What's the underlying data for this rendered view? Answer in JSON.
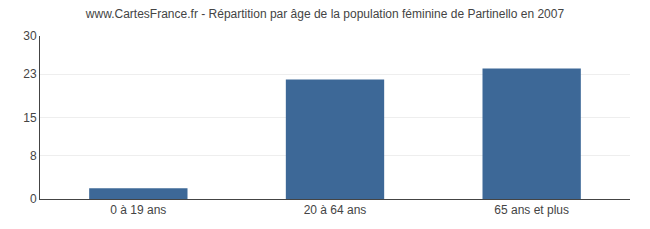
{
  "chart_data": {
    "type": "bar",
    "title": "www.CartesFrance.fr - Répartition par âge de la population féminine de Partinello en 2007",
    "categories": [
      "0 à 19 ans",
      "20 à 64 ans",
      "65 ans et plus"
    ],
    "values": [
      2,
      22,
      24
    ],
    "color": "#3d6897",
    "ylim": [
      0,
      30
    ],
    "yticks": [
      0,
      8,
      15,
      23,
      30
    ],
    "grid": true
  }
}
